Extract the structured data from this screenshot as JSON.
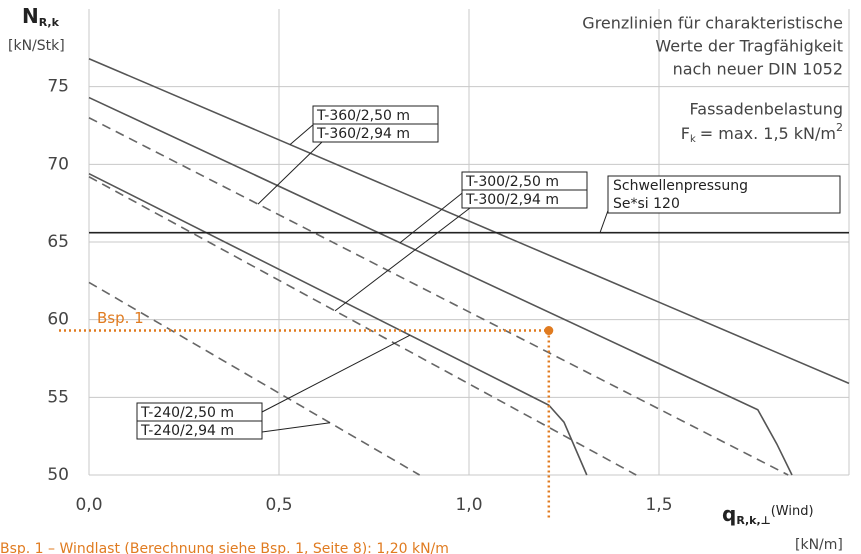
{
  "chart_data": {
    "type": "line",
    "title_lines": [
      "Grenzlinien für charakteristische",
      "Werte der  Tragfähigkeit",
      "nach neuer DIN 1052"
    ],
    "load_lines": {
      "heading": "Fassadenbelastung",
      "symbol": "F",
      "symbol_sub": "k",
      "text": "= max. 1,5 kN/m",
      "text_sup": "2"
    },
    "y_label": {
      "symbol": "N",
      "sub": "R,k",
      "unit": "[kN/Stk]"
    },
    "x_label": {
      "symbol": "q",
      "sub": "R,k,⊥",
      "suffix": "(Wind)",
      "unit": "[kN/m]"
    },
    "xlim": [
      0,
      2.0
    ],
    "ylim": [
      50,
      80
    ],
    "xticks": [
      {
        "value": 0,
        "label": "0,0"
      },
      {
        "value": 0.5,
        "label": "0,5"
      },
      {
        "value": 1.0,
        "label": "1,0"
      },
      {
        "value": 1.5,
        "label": "1,5"
      }
    ],
    "yticks": [
      50,
      55,
      60,
      65,
      70,
      75
    ],
    "grid": true,
    "series": [
      {
        "name": "T-360/2,50 m",
        "color": "#555555",
        "dash": false,
        "x": [
          0,
          2.0
        ],
        "values": [
          76.8,
          55.9
        ]
      },
      {
        "name": "T-360/2,94 m",
        "color": "#666666",
        "dash": true,
        "x": [
          0,
          1.84
        ],
        "values": [
          73.0,
          50
        ]
      },
      {
        "name": "T-300/2,50 m",
        "color": "#555555",
        "dash": false,
        "x": [
          0,
          1.76,
          1.81,
          1.85
        ],
        "values": [
          74.3,
          54.2,
          52.0,
          50
        ]
      },
      {
        "name": "T-300/2,94 m",
        "color": "#666666",
        "dash": true,
        "x": [
          0,
          1.44
        ],
        "values": [
          69.2,
          50
        ]
      },
      {
        "name": "T-240/2,50 m",
        "color": "#555555",
        "dash": false,
        "x": [
          0,
          1.21,
          1.25,
          1.31
        ],
        "values": [
          69.4,
          54.5,
          53.4,
          50
        ]
      },
      {
        "name": "T-240/2,94 m",
        "color": "#666666",
        "dash": true,
        "x": [
          0,
          0.87
        ],
        "values": [
          62.4,
          50
        ]
      }
    ],
    "threshold": {
      "value": 65.6,
      "label_lines": [
        "Schwellenpressung",
        "Se*si 120"
      ]
    },
    "example": {
      "label": "Bsp. 1",
      "x": 1.21,
      "y": 59.3,
      "color": "#e07b20",
      "footnote": "Bsp. 1 – Windlast (Berechnung siehe Bsp. 1, Seite 8): 1,20 kN/m"
    }
  }
}
